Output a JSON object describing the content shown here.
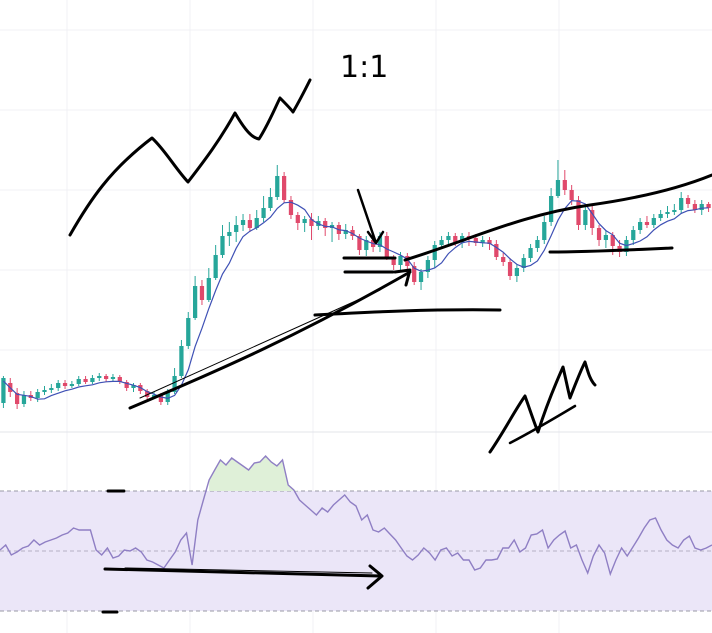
{
  "chart_data": [
    {
      "type": "candlestick",
      "panel": "price",
      "grid": true,
      "colors": {
        "up": "#26a69a",
        "down": "#e0496b",
        "ma": "#3f51b5"
      },
      "candles": [
        [
          0,
          403,
          378,
          408,
          376
        ],
        [
          1,
          383,
          392,
          397,
          378
        ],
        [
          2,
          393,
          404,
          409,
          388
        ],
        [
          3,
          404,
          395,
          407,
          391
        ],
        [
          4,
          395,
          398,
          401,
          391
        ],
        [
          5,
          398,
          392,
          402,
          389
        ],
        [
          6,
          392,
          390,
          395,
          386
        ],
        [
          7,
          390,
          388,
          393,
          384
        ],
        [
          8,
          388,
          383,
          391,
          380
        ],
        [
          9,
          383,
          386,
          389,
          380
        ],
        [
          10,
          386,
          384,
          388,
          381
        ],
        [
          11,
          384,
          379,
          386,
          376
        ],
        [
          12,
          379,
          382,
          384,
          376
        ],
        [
          13,
          382,
          378,
          384,
          375
        ],
        [
          14,
          378,
          376,
          381,
          373
        ],
        [
          15,
          376,
          379,
          382,
          374
        ],
        [
          16,
          379,
          377,
          381,
          374
        ],
        [
          17,
          377,
          382,
          384,
          375
        ],
        [
          18,
          382,
          388,
          391,
          380
        ],
        [
          19,
          388,
          385,
          392,
          383
        ],
        [
          20,
          385,
          391,
          394,
          383
        ],
        [
          21,
          391,
          397,
          401,
          389
        ],
        [
          22,
          397,
          395,
          399,
          392
        ],
        [
          23,
          395,
          402,
          405,
          393
        ],
        [
          24,
          402,
          392,
          405,
          389
        ],
        [
          25,
          392,
          376,
          394,
          368
        ],
        [
          26,
          376,
          346,
          378,
          340
        ],
        [
          27,
          346,
          318,
          349,
          312
        ],
        [
          28,
          318,
          286,
          320,
          276
        ],
        [
          29,
          286,
          300,
          305,
          280
        ],
        [
          30,
          300,
          278,
          302,
          268
        ],
        [
          31,
          278,
          255,
          280,
          245
        ],
        [
          32,
          255,
          236,
          258,
          225
        ],
        [
          33,
          236,
          232,
          246,
          222
        ],
        [
          34,
          232,
          225,
          242,
          216
        ],
        [
          35,
          225,
          220,
          231,
          214
        ],
        [
          36,
          220,
          228,
          232,
          214
        ],
        [
          37,
          228,
          218,
          230,
          210
        ],
        [
          38,
          218,
          208,
          222,
          196
        ],
        [
          39,
          208,
          197,
          211,
          188
        ],
        [
          40,
          197,
          176,
          200,
          165
        ],
        [
          41,
          176,
          200,
          203,
          172
        ],
        [
          42,
          200,
          215,
          219,
          196
        ],
        [
          43,
          215,
          223,
          230,
          212
        ],
        [
          44,
          223,
          219,
          232,
          216
        ],
        [
          45,
          219,
          226,
          240,
          213
        ],
        [
          46,
          226,
          221,
          230,
          216
        ],
        [
          47,
          221,
          228,
          236,
          218
        ],
        [
          48,
          228,
          225,
          242,
          222
        ],
        [
          49,
          225,
          234,
          240,
          222
        ],
        [
          50,
          234,
          230,
          239,
          224
        ],
        [
          51,
          230,
          236,
          240,
          226
        ],
        [
          52,
          236,
          250,
          255,
          234
        ],
        [
          53,
          250,
          240,
          256,
          236
        ],
        [
          54,
          240,
          247,
          252,
          238
        ],
        [
          55,
          247,
          236,
          252,
          232
        ],
        [
          56,
          236,
          257,
          260,
          232
        ],
        [
          57,
          257,
          265,
          270,
          255
        ],
        [
          58,
          265,
          256,
          270,
          252
        ],
        [
          59,
          256,
          266,
          272,
          253
        ],
        [
          60,
          266,
          282,
          285,
          262
        ],
        [
          61,
          282,
          272,
          290,
          269
        ],
        [
          62,
          272,
          260,
          278,
          256
        ],
        [
          63,
          260,
          245,
          268,
          241
        ],
        [
          64,
          245,
          240,
          248,
          236
        ],
        [
          65,
          240,
          236,
          244,
          232
        ],
        [
          66,
          236,
          242,
          246,
          233
        ],
        [
          67,
          242,
          236,
          248,
          233
        ],
        [
          68,
          236,
          238,
          246,
          232
        ],
        [
          69,
          238,
          243,
          246,
          234
        ],
        [
          70,
          243,
          240,
          247,
          236
        ],
        [
          71,
          240,
          244,
          250,
          237
        ],
        [
          72,
          244,
          257,
          260,
          240
        ],
        [
          73,
          257,
          262,
          266,
          253
        ],
        [
          74,
          262,
          276,
          280,
          258
        ],
        [
          75,
          276,
          268,
          282,
          264
        ],
        [
          76,
          268,
          258,
          272,
          254
        ],
        [
          77,
          258,
          248,
          262,
          244
        ],
        [
          78,
          248,
          240,
          252,
          236
        ],
        [
          79,
          240,
          222,
          244,
          216
        ],
        [
          80,
          222,
          196,
          226,
          188
        ],
        [
          81,
          196,
          180,
          198,
          160
        ],
        [
          82,
          180,
          190,
          195,
          170
        ],
        [
          83,
          190,
          200,
          205,
          185
        ],
        [
          84,
          200,
          225,
          230,
          196
        ],
        [
          85,
          225,
          210,
          230,
          205
        ],
        [
          86,
          210,
          228,
          235,
          205
        ],
        [
          87,
          228,
          240,
          246,
          225
        ],
        [
          88,
          240,
          235,
          248,
          230
        ],
        [
          89,
          235,
          246,
          255,
          232
        ],
        [
          90,
          246,
          252,
          257,
          240
        ],
        [
          91,
          252,
          240,
          256,
          236
        ],
        [
          92,
          240,
          230,
          245,
          226
        ],
        [
          93,
          230,
          222,
          234,
          218
        ],
        [
          94,
          222,
          225,
          228,
          216
        ],
        [
          95,
          225,
          218,
          228,
          214
        ],
        [
          96,
          218,
          214,
          221,
          210
        ],
        [
          97,
          214,
          212,
          218,
          206
        ],
        [
          98,
          212,
          210,
          215,
          204
        ],
        [
          99,
          210,
          198,
          214,
          192
        ],
        [
          100,
          198,
          204,
          208,
          195
        ],
        [
          101,
          204,
          210,
          213,
          200
        ],
        [
          102,
          210,
          204,
          215,
          200
        ],
        [
          103,
          204,
          208,
          212,
          202
        ]
      ]
    },
    {
      "type": "line",
      "panel": "oscillator",
      "band_dashed": true,
      "band_color": "#ebe6f8",
      "line_color": "#8f7fc4",
      "overbought_fill": "#dff0d8",
      "values": [
        550,
        545,
        555,
        552,
        548,
        546,
        540,
        545,
        542,
        540,
        538,
        535,
        533,
        528,
        530,
        530,
        530,
        550,
        555,
        548,
        558,
        556,
        550,
        551,
        548,
        552,
        560,
        562,
        565,
        568,
        560,
        552,
        540,
        533,
        565,
        520,
        500,
        480,
        470,
        460,
        465,
        458,
        462,
        466,
        470,
        463,
        462,
        456,
        462,
        466,
        460,
        485,
        490,
        500,
        505,
        510,
        515,
        508,
        512,
        505,
        500,
        495,
        502,
        506,
        520,
        515,
        530,
        532,
        528,
        534,
        540,
        548,
        556,
        560,
        555,
        548,
        553,
        560,
        550,
        548,
        556,
        553,
        560,
        560,
        570,
        568,
        560,
        560,
        559,
        548,
        548,
        540,
        552,
        548,
        535,
        534,
        530,
        548,
        540,
        535,
        531,
        548,
        545,
        560,
        573,
        556,
        545,
        553,
        574,
        560,
        548,
        556,
        547,
        538,
        528,
        520,
        518,
        530,
        540,
        545,
        548,
        540,
        536,
        548,
        550,
        548,
        545
      ]
    }
  ],
  "annotations": {
    "ratio_label": "1:1"
  }
}
